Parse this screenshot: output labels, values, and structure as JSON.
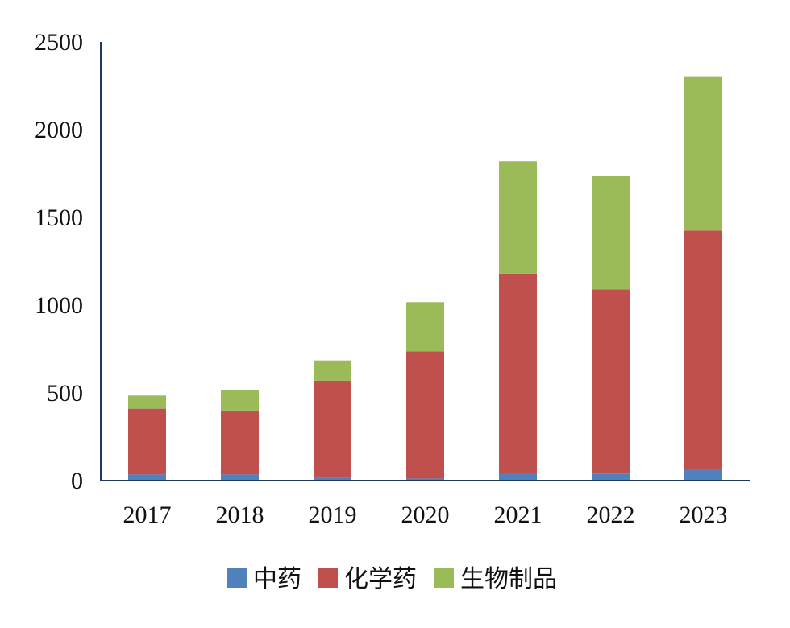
{
  "chart_data": {
    "type": "bar",
    "stacked": true,
    "categories": [
      "2017",
      "2018",
      "2019",
      "2020",
      "2021",
      "2022",
      "2023"
    ],
    "series": [
      {
        "name": "中药",
        "color": "#4f81bd",
        "values": [
          35,
          35,
          15,
          12,
          45,
          40,
          60
        ]
      },
      {
        "name": "化学药",
        "color": "#c0504d",
        "values": [
          375,
          365,
          555,
          725,
          1135,
          1050,
          1365
        ]
      },
      {
        "name": "生物制品",
        "color": "#9bbb59",
        "values": [
          75,
          115,
          115,
          280,
          640,
          645,
          875
        ]
      }
    ],
    "ylim": [
      0,
      2500
    ],
    "yticks": [
      0,
      500,
      1000,
      1500,
      2000,
      2500
    ],
    "title": "",
    "xlabel": "",
    "ylabel": "",
    "grid": false,
    "legend_position": "bottom"
  }
}
